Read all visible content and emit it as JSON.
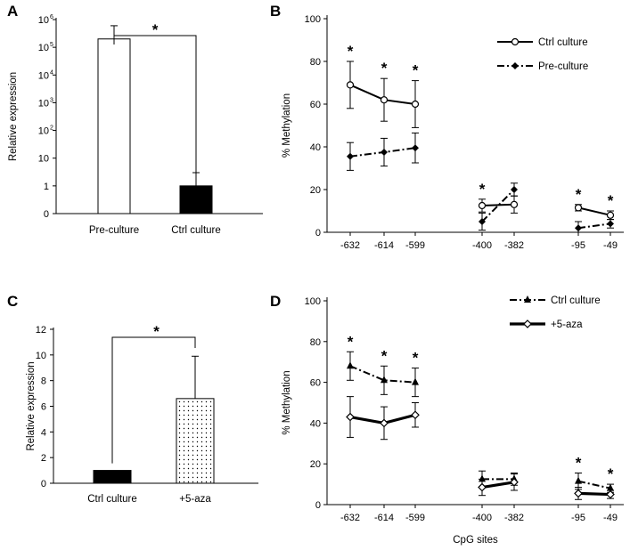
{
  "chart_data": [
    {
      "panel": "A",
      "type": "bar",
      "y_scale": "log10",
      "ylabel": "Relative expression",
      "y_ticks": [
        "0",
        "1",
        "10",
        "10",
        "10",
        "10",
        "10",
        "10"
      ],
      "y_tick_exponents": [
        "",
        "",
        "",
        "2",
        "3",
        "4",
        "5",
        "6"
      ],
      "categories": [
        "Pre-culture",
        "Ctrl culture"
      ],
      "values": [
        200000,
        1
      ],
      "errors_upper": [
        600000,
        3
      ],
      "bar_fill": [
        "#ffffff",
        "#000000"
      ],
      "significance": "*"
    },
    {
      "panel": "B",
      "type": "line",
      "ylabel": "% Methylation",
      "ylim": [
        0,
        100
      ],
      "y_ticks": [
        "0",
        "20",
        "40",
        "60",
        "80",
        "100"
      ],
      "x_ticks": [
        "-632",
        "-614",
        "-599",
        "-400",
        "-382",
        "-95",
        "-49"
      ],
      "segments": [
        [
          0,
          1,
          2
        ],
        [
          3,
          4
        ],
        [
          5,
          6
        ]
      ],
      "series": [
        {
          "name": "Ctrl culture",
          "marker": "open-circle",
          "dash": "solid",
          "values": [
            69,
            62,
            60,
            12.5,
            13,
            11.5,
            8
          ],
          "errors": [
            11,
            10,
            11,
            3,
            4,
            1.5,
            2
          ]
        },
        {
          "name": "Pre-culture",
          "marker": "filled-diamond",
          "dash": "dash-dot",
          "values": [
            35.5,
            37.5,
            39.5,
            5,
            20,
            2,
            4
          ],
          "errors": [
            6.5,
            6.5,
            7,
            4,
            3,
            3,
            2
          ]
        }
      ],
      "stars": [
        "*",
        "*",
        "*",
        "*",
        "",
        "*",
        "*"
      ]
    },
    {
      "panel": "C",
      "type": "bar",
      "ylabel": "Relative expression",
      "ylim": [
        0,
        12
      ],
      "y_ticks": [
        "0",
        "2",
        "4",
        "6",
        "8",
        "10",
        "12"
      ],
      "categories": [
        "Ctrl culture",
        "+5-aza"
      ],
      "values": [
        1,
        6.6
      ],
      "errors_upper": [
        0,
        3.3
      ],
      "bar_fill": [
        "#000000",
        "dotted"
      ],
      "significance": "*"
    },
    {
      "panel": "D",
      "type": "line",
      "ylabel": "% Methylation",
      "xlabel": "CpG sites",
      "ylim": [
        0,
        100
      ],
      "y_ticks": [
        "0",
        "20",
        "40",
        "60",
        "80",
        "100"
      ],
      "x_ticks": [
        "-632",
        "-614",
        "-599",
        "-400",
        "-382",
        "-95",
        "-49"
      ],
      "segments": [
        [
          0,
          1,
          2
        ],
        [
          3,
          4
        ],
        [
          5,
          6
        ]
      ],
      "series": [
        {
          "name": "Ctrl culture",
          "marker": "filled-triangle",
          "dash": "dash-dot",
          "values": [
            68,
            61,
            60,
            12.5,
            12.5,
            11.5,
            8
          ],
          "errors": [
            7,
            7,
            7,
            4,
            3,
            4,
            2
          ]
        },
        {
          "name": "+5-aza",
          "marker": "open-diamond",
          "dash": "solid-thick",
          "values": [
            43,
            40,
            44,
            8.5,
            11,
            5.5,
            5
          ],
          "errors": [
            10,
            8,
            6,
            4,
            4,
            3,
            2
          ]
        }
      ],
      "stars": [
        "*",
        "*",
        "*",
        "",
        "",
        "*",
        "*"
      ]
    }
  ]
}
